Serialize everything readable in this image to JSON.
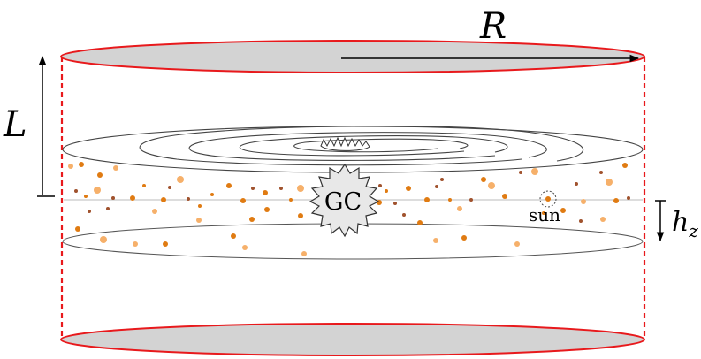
{
  "labels": {
    "radius": "R",
    "half_height": "L",
    "scale_height_base": "h",
    "scale_height_sub": "z",
    "galactic_center": "GC",
    "sun": "sun"
  },
  "colors": {
    "cylinder_outline": "#e8191c",
    "cap_fill": "#d3d3d3",
    "dust_dark": "#e07b12",
    "dust_light": "#f6b06a",
    "dust_brown": "#a0522d",
    "core_fill": "#e8e8e8",
    "disk_stroke": "#444444"
  },
  "icons": {
    "galactic_center": "gear-star-icon",
    "sun_marker": "dotted-circle-icon"
  }
}
